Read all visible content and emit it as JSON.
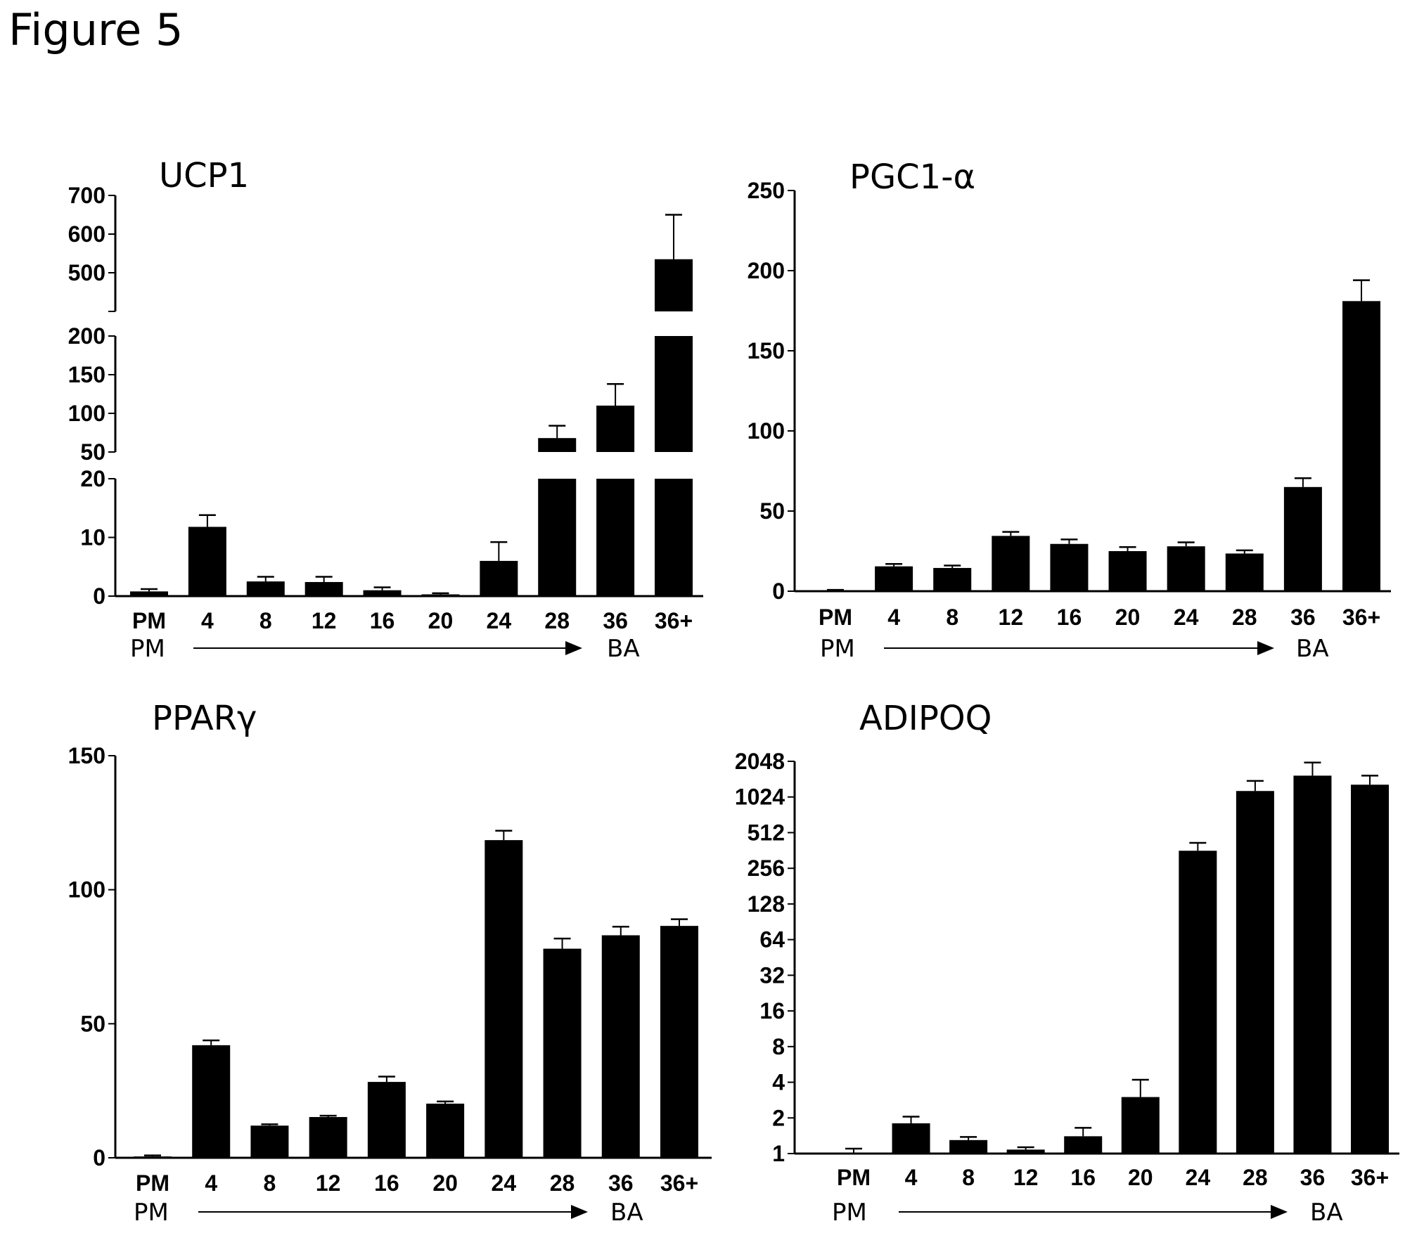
{
  "figure_title": "Figure 5",
  "arrow": {
    "start_label": "PM",
    "end_label": "BA"
  },
  "chart_data": [
    {
      "type": "bar",
      "title": "UCP1",
      "categories": [
        "PM",
        "4",
        "8",
        "12",
        "16",
        "20",
        "24",
        "28",
        "36",
        "36+"
      ],
      "values": [
        0.8,
        11.8,
        2.5,
        2.4,
        1.0,
        0.3,
        6.0,
        68,
        110,
        535
      ],
      "errors": [
        0.4,
        2.0,
        0.8,
        0.9,
        0.5,
        0.2,
        3.2,
        16,
        28,
        115
      ],
      "broken_axis": [
        {
          "range": [
            0,
            20
          ],
          "ticks": [
            0,
            10,
            20
          ]
        },
        {
          "range": [
            50,
            200
          ],
          "ticks": [
            50,
            100,
            150,
            200
          ]
        },
        {
          "range": [
            400,
            700
          ],
          "ticks": [
            500,
            600,
            700
          ]
        }
      ]
    },
    {
      "type": "bar",
      "title": "PGC1-α",
      "categories": [
        "PM",
        "4",
        "8",
        "12",
        "16",
        "20",
        "24",
        "28",
        "36",
        "36+"
      ],
      "values": [
        0.5,
        15.5,
        14.5,
        34.5,
        29.5,
        25,
        28,
        23.5,
        65,
        181
      ],
      "errors": [
        0.3,
        1.5,
        1.5,
        2.5,
        2.8,
        2.5,
        2.5,
        2.0,
        5.5,
        13
      ],
      "ylim": [
        0,
        250
      ],
      "yticks": [
        0,
        50,
        100,
        150,
        200,
        250
      ]
    },
    {
      "type": "bar",
      "title": "PPARγ",
      "categories": [
        "PM",
        "4",
        "8",
        "12",
        "16",
        "20",
        "24",
        "28",
        "36",
        "36+"
      ],
      "values": [
        0.5,
        42,
        12,
        15.2,
        28.3,
        20.2,
        118.5,
        78,
        83,
        86.5
      ],
      "errors": [
        0.4,
        1.8,
        0.5,
        0.5,
        2.0,
        0.8,
        3.5,
        3.8,
        3.2,
        2.5
      ],
      "ylim": [
        0,
        150
      ],
      "yticks": [
        0,
        50,
        100,
        150
      ]
    },
    {
      "type": "bar",
      "title": "ADIPOQ",
      "categories": [
        "PM",
        "4",
        "8",
        "12",
        "16",
        "20",
        "24",
        "28",
        "36",
        "36+"
      ],
      "values": [
        1.0,
        1.8,
        1.3,
        1.08,
        1.4,
        3.0,
        360,
        1150,
        1550,
        1300
      ],
      "errors_upper": [
        1.1,
        2.05,
        1.38,
        1.13,
        1.65,
        4.2,
        420,
        1400,
        2000,
        1550
      ],
      "yscale": "log2",
      "ylim": [
        1,
        2048
      ],
      "yticks": [
        1,
        2,
        4,
        8,
        16,
        32,
        64,
        128,
        256,
        512,
        1024,
        2048
      ]
    }
  ]
}
